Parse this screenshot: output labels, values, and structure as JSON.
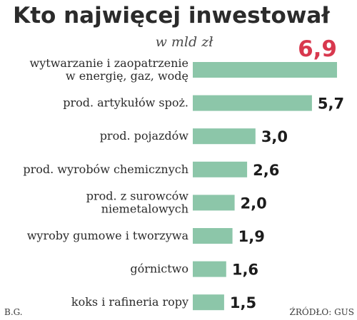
{
  "chart_data": {
    "type": "bar",
    "orientation": "horizontal",
    "title": "Kto najwięcej inwestował",
    "subtitle": "w mld zł",
    "categories": [
      [
        "wytwarzanie i zaopatrzenie",
        "w energię, gaz, wodę"
      ],
      [
        "prod. artykułów spoż."
      ],
      [
        "prod. pojazdów"
      ],
      [
        "prod. wyrobów chemicznych"
      ],
      [
        "prod. z surowców",
        "niemetalowych"
      ],
      [
        "wyroby gumowe i tworzywa"
      ],
      [
        "górnictwo"
      ],
      [
        "koks i rafineria ropy"
      ]
    ],
    "values": [
      6.9,
      5.7,
      3.0,
      2.6,
      2.0,
      1.9,
      1.6,
      1.5
    ],
    "value_labels": [
      "6,9",
      "5,7",
      "3,0",
      "2,6",
      "2,0",
      "1,9",
      "1,6",
      "1,5"
    ],
    "xlim": [
      0,
      6.9
    ],
    "grid": false,
    "legend": "none",
    "bar_color": "#8cc6a9",
    "highlight_color": "#d8384e",
    "text_color": "#2b2b2b"
  },
  "footer": {
    "author": "B.G.",
    "source": "ŹRÓDŁO: GUS"
  }
}
